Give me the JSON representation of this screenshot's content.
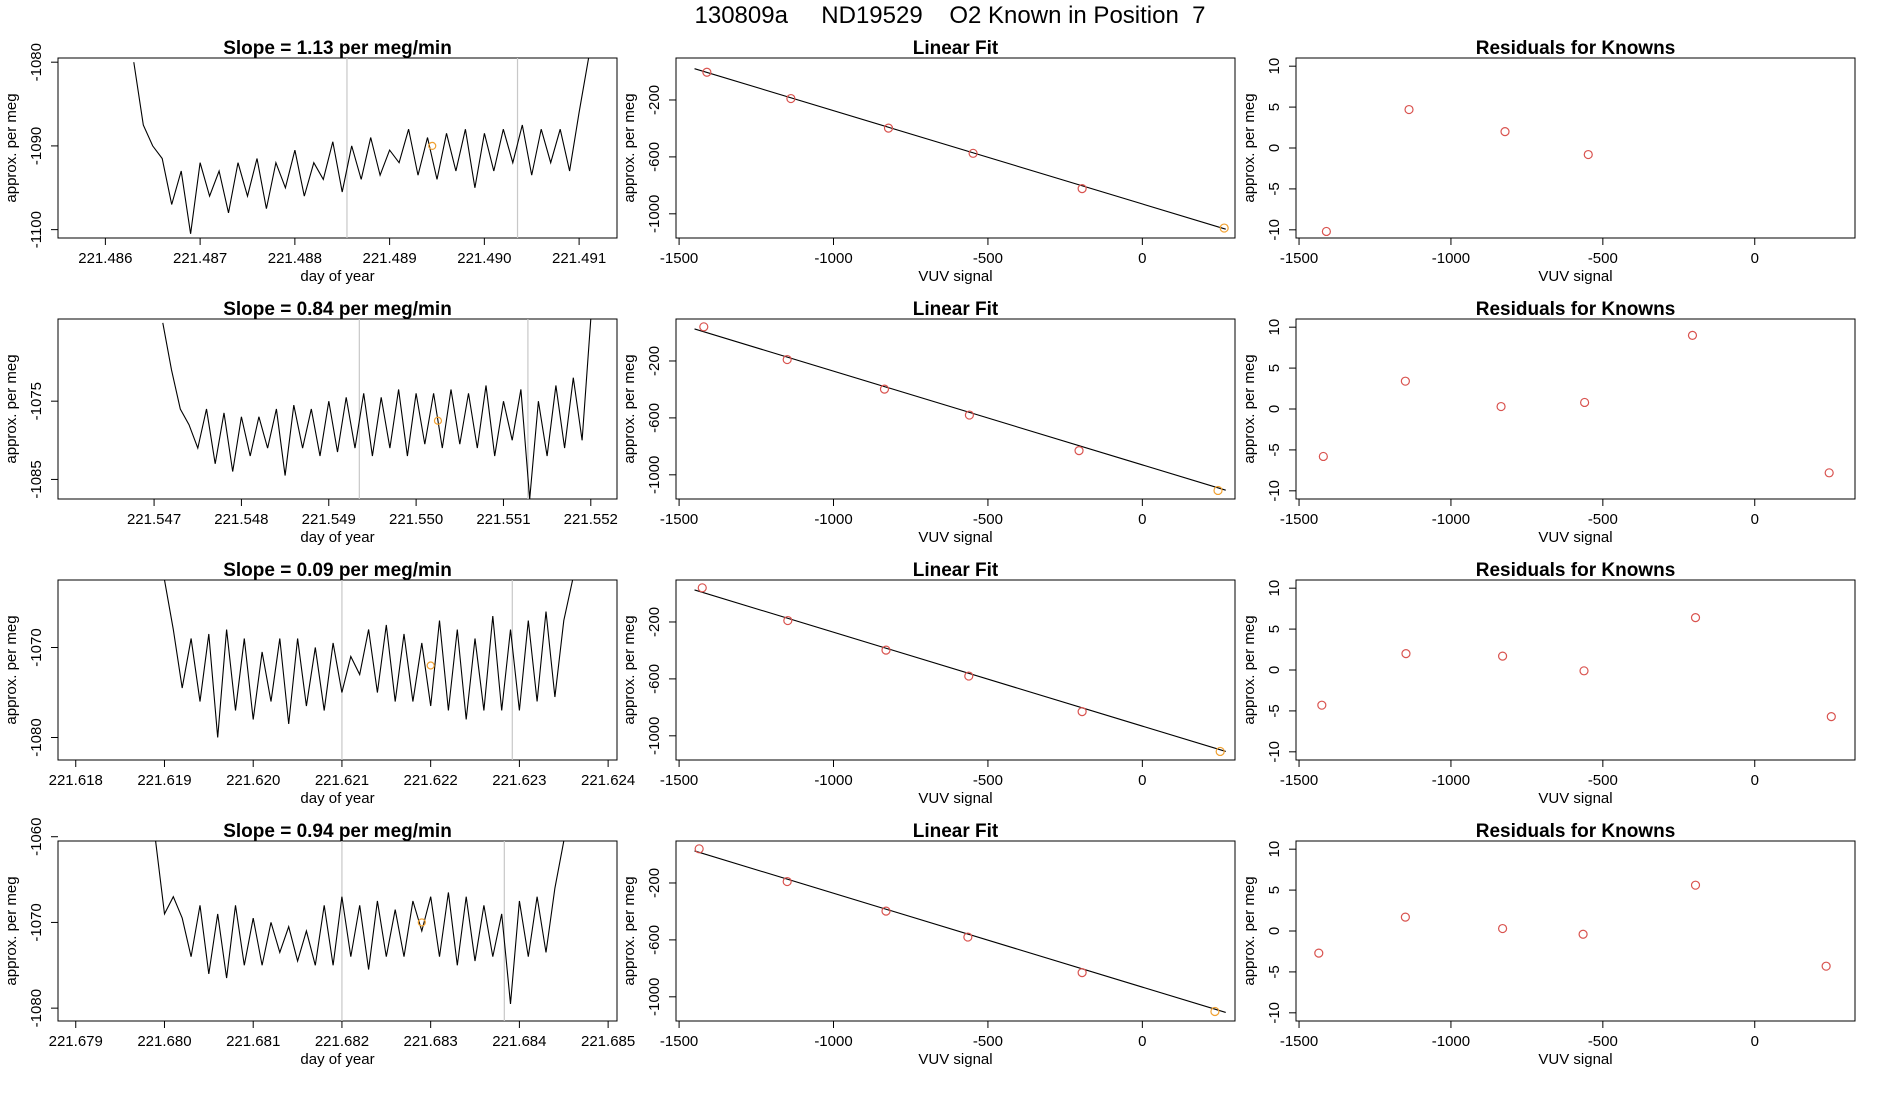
{
  "title": "130809a     ND19529    O2 Known in Position  7",
  "colors": {
    "line": "#000000",
    "point": "#d9534f",
    "highlight": "#f0a030",
    "vline": "#c8c8c8"
  },
  "chart_data": [
    {
      "type": "line",
      "row": 0,
      "col": 0,
      "title": "Slope =  1.13  per meg/min",
      "xlabel": "day of year",
      "ylabel": "approx. per meg",
      "xlim": [
        221.4855,
        221.4914
      ],
      "ylim": [
        -1101,
        -1079.5
      ],
      "xticks": [
        221.486,
        221.487,
        221.488,
        221.489,
        221.49,
        221.491
      ],
      "xtick_labels": [
        "221.486",
        "221.487",
        "221.488",
        "221.489",
        "221.490",
        "221.491"
      ],
      "yticks": [
        -1080,
        -1090,
        -1100
      ],
      "vlines": [
        221.48855,
        221.49035
      ],
      "highlight": {
        "x": 221.48945,
        "y": -1090.0
      },
      "x": [
        221.4863,
        221.4864,
        221.4865,
        221.4866,
        221.4867,
        221.4868,
        221.4869,
        221.487,
        221.4871,
        221.4872,
        221.4873,
        221.4874,
        221.4875,
        221.4876,
        221.4877,
        221.4878,
        221.4879,
        221.488,
        221.4881,
        221.4882,
        221.4883,
        221.4884,
        221.4885,
        221.4886,
        221.4887,
        221.4888,
        221.4889,
        221.489,
        221.4891,
        221.4892,
        221.4893,
        221.4894,
        221.4895,
        221.4896,
        221.4897,
        221.4898,
        221.4899,
        221.49,
        221.4901,
        221.4902,
        221.4903,
        221.4904,
        221.4905,
        221.4906,
        221.4907,
        221.4908,
        221.4909,
        221.491,
        221.4911
      ],
      "y": [
        -1080.0,
        -1087.5,
        -1090.0,
        -1091.5,
        -1097.0,
        -1093.0,
        -1100.5,
        -1092.0,
        -1096.0,
        -1093.0,
        -1098.0,
        -1092.0,
        -1096.0,
        -1091.5,
        -1097.5,
        -1092.0,
        -1095.0,
        -1090.5,
        -1096.0,
        -1092.0,
        -1094.0,
        -1089.5,
        -1095.5,
        -1090.0,
        -1094.0,
        -1089.0,
        -1093.5,
        -1090.5,
        -1092.0,
        -1088.0,
        -1093.5,
        -1089.0,
        -1094.0,
        -1088.5,
        -1093.0,
        -1088.0,
        -1095.0,
        -1088.5,
        -1093.0,
        -1088.0,
        -1092.0,
        -1087.5,
        -1093.5,
        -1088.0,
        -1092.0,
        -1088.0,
        -1093.0,
        -1086.0,
        -1079.5
      ]
    },
    {
      "type": "scatter",
      "row": 0,
      "col": 1,
      "title": "Linear Fit",
      "xlabel": "VUV signal",
      "ylabel": "approx. per meg",
      "xlim": [
        -1510,
        300
      ],
      "ylim": [
        -1170,
        95
      ],
      "xticks": [
        -1500,
        -1000,
        -500,
        0
      ],
      "xtick_labels": [
        "-1500",
        "-1000",
        "-500",
        "0"
      ],
      "yticks": [
        -200,
        -600,
        -1000
      ],
      "ytick_labels": [
        "-200",
        "-600",
        "-1000"
      ],
      "fit_line": {
        "x": [
          -1450,
          270
        ],
        "y": [
          20,
          -1108
        ]
      },
      "x": [
        -1410,
        -1138,
        -822,
        -548,
        -195,
        265
      ],
      "y": [
        -5,
        -190,
        -398,
        -575,
        -823,
        -1100
      ],
      "highlight_index": 5
    },
    {
      "type": "scatter",
      "row": 0,
      "col": 2,
      "title": "Residuals for Knowns",
      "xlabel": "VUV signal",
      "ylabel": "approx. per meg",
      "xlim": [
        -1510,
        330
      ],
      "ylim": [
        -11,
        11
      ],
      "xticks": [
        -1500,
        -1000,
        -500,
        0
      ],
      "xtick_labels": [
        "-1500",
        "-1000",
        "-500",
        "0"
      ],
      "yticks": [
        10,
        5,
        0,
        -5,
        -10
      ],
      "ytick_labels": [
        "10",
        "5",
        "0",
        "-5",
        "-10"
      ],
      "x": [
        -1410,
        -1138,
        -822,
        -548
      ],
      "y": [
        -10.2,
        4.7,
        2.0,
        -0.8
      ]
    },
    {
      "type": "line",
      "row": 1,
      "col": 0,
      "title": "Slope =  0.84  per meg/min",
      "xlabel": "day of year",
      "ylabel": "approx. per meg",
      "xlim": [
        221.5459,
        221.5523
      ],
      "ylim": [
        -1087.5,
        -1064.5
      ],
      "xticks": [
        221.547,
        221.548,
        221.549,
        221.55,
        221.551,
        221.552
      ],
      "xtick_labels": [
        "221.547",
        "221.548",
        "221.549",
        "221.550",
        "221.551",
        "221.552"
      ],
      "yticks": [
        -1075,
        -1085
      ],
      "vlines": [
        221.54935,
        221.55128
      ],
      "highlight": {
        "x": 221.55025,
        "y": -1077.5
      },
      "x": [
        221.5471,
        221.5472,
        221.5473,
        221.5474,
        221.5475,
        221.5476,
        221.5477,
        221.5478,
        221.5479,
        221.548,
        221.5481,
        221.5482,
        221.5483,
        221.5484,
        221.5485,
        221.5486,
        221.5487,
        221.5488,
        221.5489,
        221.549,
        221.5491,
        221.5492,
        221.5493,
        221.5494,
        221.5495,
        221.5496,
        221.5497,
        221.5498,
        221.5499,
        221.55,
        221.5501,
        221.5502,
        221.5503,
        221.5504,
        221.5505,
        221.5506,
        221.5507,
        221.5508,
        221.5509,
        221.551,
        221.5511,
        221.5512,
        221.5513,
        221.5514,
        221.5515,
        221.5516,
        221.5517,
        221.5518,
        221.5519,
        221.552
      ],
      "y": [
        -1065.0,
        -1071.0,
        -1076.0,
        -1078.0,
        -1081.0,
        -1076.0,
        -1083.0,
        -1076.5,
        -1084.0,
        -1077.0,
        -1082.0,
        -1077.0,
        -1081.0,
        -1076.0,
        -1084.5,
        -1075.5,
        -1081.0,
        -1076.0,
        -1082.0,
        -1075.0,
        -1081.5,
        -1074.5,
        -1081.0,
        -1074.0,
        -1082.0,
        -1074.5,
        -1081.0,
        -1073.5,
        -1082.0,
        -1074.0,
        -1080.5,
        -1074.0,
        -1081.0,
        -1073.5,
        -1080.5,
        -1074.0,
        -1081.0,
        -1073.0,
        -1082.0,
        -1075.0,
        -1080.0,
        -1073.5,
        -1087.5,
        -1075.0,
        -1082.0,
        -1073.0,
        -1081.0,
        -1072.0,
        -1080.0,
        -1064.5
      ]
    },
    {
      "type": "scatter",
      "row": 1,
      "col": 1,
      "title": "Linear Fit",
      "xlabel": "VUV signal",
      "ylabel": "approx. per meg",
      "xlim": [
        -1510,
        300
      ],
      "ylim": [
        -1170,
        95
      ],
      "xticks": [
        -1500,
        -1000,
        -500,
        0
      ],
      "xtick_labels": [
        "-1500",
        "-1000",
        "-500",
        "0"
      ],
      "yticks": [
        -200,
        -600,
        -1000
      ],
      "ytick_labels": [
        "-200",
        "-600",
        "-1000"
      ],
      "fit_line": {
        "x": [
          -1450,
          270
        ],
        "y": [
          25,
          -1108
        ]
      },
      "x": [
        -1420,
        -1150,
        -835,
        -560,
        -205,
        245
      ],
      "y": [
        40,
        -190,
        -398,
        -580,
        -830,
        -1110
      ],
      "highlight_index": 5
    },
    {
      "type": "scatter",
      "row": 1,
      "col": 2,
      "title": "Residuals for Knowns",
      "xlabel": "VUV signal",
      "ylabel": "approx. per meg",
      "xlim": [
        -1510,
        330
      ],
      "ylim": [
        -11,
        11
      ],
      "xticks": [
        -1500,
        -1000,
        -500,
        0
      ],
      "xtick_labels": [
        "-1500",
        "-1000",
        "-500",
        "0"
      ],
      "yticks": [
        10,
        5,
        0,
        -5,
        -10
      ],
      "ytick_labels": [
        "10",
        "5",
        "0",
        "-5",
        "-10"
      ],
      "x": [
        -1420,
        -1150,
        -835,
        -560,
        -205,
        245
      ],
      "y": [
        -5.8,
        3.4,
        0.3,
        0.8,
        9.0,
        -7.8
      ]
    },
    {
      "type": "line",
      "row": 2,
      "col": 0,
      "title": "Slope =  0.09  per meg/min",
      "xlabel": "day of year",
      "ylabel": "approx. per meg",
      "xlim": [
        221.6178,
        221.6241
      ],
      "ylim": [
        -1082.5,
        -1062.5
      ],
      "xticks": [
        221.618,
        221.619,
        221.62,
        221.621,
        221.622,
        221.623,
        221.624
      ],
      "xtick_labels": [
        "221.618",
        "221.619",
        "221.620",
        "221.621",
        "221.622",
        "221.623",
        "221.624"
      ],
      "yticks": [
        -1070,
        -1080
      ],
      "vlines": [
        221.621,
        221.62292
      ],
      "highlight": {
        "x": 221.622,
        "y": -1072.0
      },
      "x": [
        221.619,
        221.6191,
        221.6192,
        221.6193,
        221.6194,
        221.6195,
        221.6196,
        221.6197,
        221.6198,
        221.6199,
        221.62,
        221.6201,
        221.6202,
        221.6203,
        221.6204,
        221.6205,
        221.6206,
        221.6207,
        221.6208,
        221.6209,
        221.621,
        221.6211,
        221.6212,
        221.6213,
        221.6214,
        221.6215,
        221.6216,
        221.6217,
        221.6218,
        221.6219,
        221.622,
        221.6221,
        221.6222,
        221.6223,
        221.6224,
        221.6225,
        221.6226,
        221.6227,
        221.6228,
        221.6229,
        221.623,
        221.6231,
        221.6232,
        221.6233,
        221.6234,
        221.6235,
        221.6236
      ],
      "y": [
        -1062.5,
        -1068.0,
        -1074.5,
        -1069.0,
        -1076.0,
        -1068.5,
        -1080.0,
        -1068.0,
        -1077.0,
        -1069.0,
        -1078.0,
        -1070.5,
        -1076.0,
        -1069.0,
        -1078.5,
        -1069.0,
        -1076.5,
        -1070.0,
        -1077.0,
        -1069.5,
        -1075.0,
        -1071.0,
        -1073.0,
        -1068.0,
        -1075.0,
        -1067.5,
        -1076.0,
        -1068.5,
        -1076.0,
        -1069.5,
        -1076.5,
        -1067.0,
        -1077.0,
        -1068.0,
        -1078.0,
        -1069.0,
        -1077.0,
        -1066.5,
        -1077.0,
        -1068.0,
        -1077.0,
        -1067.0,
        -1076.0,
        -1066.0,
        -1075.5,
        -1067.0,
        -1062.5
      ]
    },
    {
      "type": "scatter",
      "row": 2,
      "col": 1,
      "title": "Linear Fit",
      "xlabel": "VUV signal",
      "ylabel": "approx. per meg",
      "xlim": [
        -1510,
        300
      ],
      "ylim": [
        -1170,
        95
      ],
      "xticks": [
        -1500,
        -1000,
        -500,
        0
      ],
      "xtick_labels": [
        "-1500",
        "-1000",
        "-500",
        "0"
      ],
      "yticks": [
        -200,
        -600,
        -1000
      ],
      "ytick_labels": [
        "-200",
        "-600",
        "-1000"
      ],
      "fit_line": {
        "x": [
          -1450,
          270
        ],
        "y": [
          25,
          -1110
        ]
      },
      "x": [
        -1425,
        -1148,
        -830,
        -562,
        -195,
        252
      ],
      "y": [
        40,
        -190,
        -398,
        -580,
        -830,
        -1110
      ],
      "highlight_index": 5
    },
    {
      "type": "scatter",
      "row": 2,
      "col": 2,
      "title": "Residuals for Knowns",
      "xlabel": "VUV signal",
      "ylabel": "approx. per meg",
      "xlim": [
        -1510,
        330
      ],
      "ylim": [
        -11,
        11
      ],
      "xticks": [
        -1500,
        -1000,
        -500,
        0
      ],
      "xtick_labels": [
        "-1500",
        "-1000",
        "-500",
        "0"
      ],
      "yticks": [
        10,
        5,
        0,
        -5,
        -10
      ],
      "ytick_labels": [
        "10",
        "5",
        "0",
        "-5",
        "-10"
      ],
      "x": [
        -1425,
        -1148,
        -830,
        -562,
        -195,
        252
      ],
      "y": [
        -4.3,
        2.0,
        1.7,
        -0.1,
        6.4,
        -5.7
      ]
    },
    {
      "type": "line",
      "row": 3,
      "col": 0,
      "title": "Slope =  0.94  per meg/min",
      "xlabel": "day of year",
      "ylabel": "approx. per meg",
      "xlim": [
        221.6788,
        221.6851
      ],
      "ylim": [
        -1081.5,
        -1060.5
      ],
      "xticks": [
        221.679,
        221.68,
        221.681,
        221.682,
        221.683,
        221.684,
        221.685
      ],
      "xtick_labels": [
        "221.679",
        "221.680",
        "221.681",
        "221.682",
        "221.683",
        "221.684",
        "221.685"
      ],
      "yticks": [
        -1060,
        -1070,
        -1080
      ],
      "vlines": [
        221.682,
        221.68383
      ],
      "highlight": {
        "x": 221.6829,
        "y": -1070.0
      },
      "x": [
        221.6799,
        221.68,
        221.6801,
        221.6802,
        221.6803,
        221.6804,
        221.6805,
        221.6806,
        221.6807,
        221.6808,
        221.6809,
        221.681,
        221.6811,
        221.6812,
        221.6813,
        221.6814,
        221.6815,
        221.6816,
        221.6817,
        221.6818,
        221.6819,
        221.682,
        221.6821,
        221.6822,
        221.6823,
        221.6824,
        221.6825,
        221.6826,
        221.6827,
        221.6828,
        221.6829,
        221.683,
        221.6831,
        221.6832,
        221.6833,
        221.6834,
        221.6835,
        221.6836,
        221.6837,
        221.6838,
        221.6839,
        221.684,
        221.6841,
        221.6842,
        221.6843,
        221.6844,
        221.6845
      ],
      "y": [
        -1060.5,
        -1069.0,
        -1067.0,
        -1069.5,
        -1074.0,
        -1068.0,
        -1076.0,
        -1069.0,
        -1076.5,
        -1068.0,
        -1075.0,
        -1069.5,
        -1075.0,
        -1070.0,
        -1073.5,
        -1070.5,
        -1074.5,
        -1071.0,
        -1075.0,
        -1068.0,
        -1075.0,
        -1067.0,
        -1074.0,
        -1068.0,
        -1075.5,
        -1067.5,
        -1074.0,
        -1068.5,
        -1074.0,
        -1067.5,
        -1071.0,
        -1067.0,
        -1074.0,
        -1066.5,
        -1075.0,
        -1067.0,
        -1074.5,
        -1068.0,
        -1074.0,
        -1069.0,
        -1079.5,
        -1067.5,
        -1074.0,
        -1067.0,
        -1073.5,
        -1066.0,
        -1060.5
      ]
    },
    {
      "type": "scatter",
      "row": 3,
      "col": 1,
      "title": "Linear Fit",
      "xlabel": "VUV signal",
      "ylabel": "approx. per meg",
      "xlim": [
        -1510,
        300
      ],
      "ylim": [
        -1170,
        95
      ],
      "xticks": [
        -1500,
        -1000,
        -500,
        0
      ],
      "xtick_labels": [
        "-1500",
        "-1000",
        "-500",
        "0"
      ],
      "yticks": [
        -200,
        -600,
        -1000
      ],
      "ytick_labels": [
        "-200",
        "-600",
        "-1000"
      ],
      "fit_line": {
        "x": [
          -1450,
          270
        ],
        "y": [
          25,
          -1110
        ]
      },
      "x": [
        -1435,
        -1150,
        -830,
        -565,
        -195,
        235
      ],
      "y": [
        40,
        -190,
        -398,
        -580,
        -830,
        -1103
      ],
      "highlight_index": 5
    },
    {
      "type": "scatter",
      "row": 3,
      "col": 2,
      "title": "Residuals for Knowns",
      "xlabel": "VUV signal",
      "ylabel": "approx. per meg",
      "xlim": [
        -1510,
        330
      ],
      "ylim": [
        -11,
        11
      ],
      "xticks": [
        -1500,
        -1000,
        -500,
        0
      ],
      "xtick_labels": [
        "-1500",
        "-1000",
        "-500",
        "0"
      ],
      "yticks": [
        10,
        5,
        0,
        -5,
        -10
      ],
      "ytick_labels": [
        "10",
        "5",
        "0",
        "-5",
        "-10"
      ],
      "x": [
        -1435,
        -1150,
        -830,
        -565,
        -195,
        235
      ],
      "y": [
        -2.7,
        1.7,
        0.3,
        -0.4,
        5.6,
        -4.3
      ]
    }
  ]
}
